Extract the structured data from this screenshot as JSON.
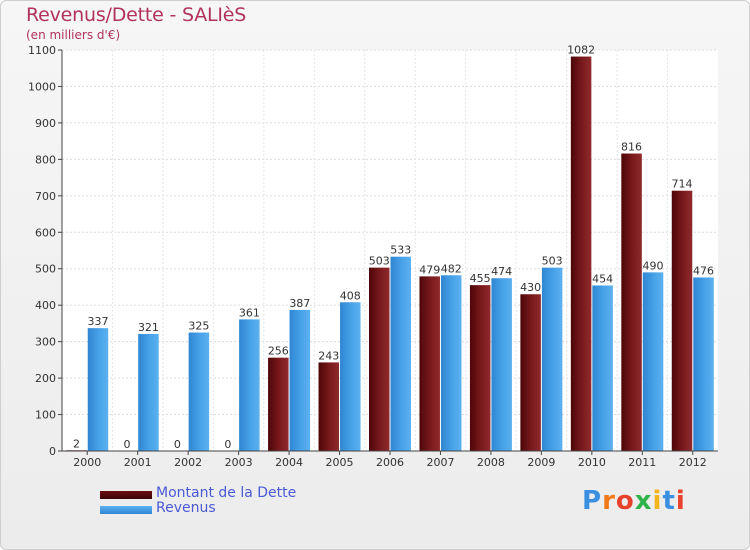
{
  "header": {
    "title": "Revenus/Dette - SALIèS",
    "subtitle": "(en milliers d'€)"
  },
  "legend": {
    "items": [
      {
        "label": "Montant de la Dette",
        "color": "#6b0f12"
      },
      {
        "label": "Revenus",
        "color": "#3e97df"
      }
    ]
  },
  "logo": {
    "text": "Proxiti"
  },
  "chart_data": {
    "type": "bar",
    "categories": [
      "2000",
      "2001",
      "2002",
      "2003",
      "2004",
      "2005",
      "2006",
      "2007",
      "2008",
      "2009",
      "2010",
      "2011",
      "2012"
    ],
    "series": [
      {
        "name": "Montant de la Dette",
        "color": "#6b0f12",
        "values": [
          2,
          0,
          0,
          0,
          256,
          243,
          503,
          479,
          455,
          430,
          1082,
          816,
          714
        ]
      },
      {
        "name": "Revenus",
        "color": "#3e97df",
        "values": [
          337,
          321,
          325,
          361,
          387,
          408,
          533,
          482,
          474,
          503,
          454,
          490,
          476
        ]
      }
    ],
    "ylim": [
      0,
      1100
    ],
    "yticks": [
      0,
      100,
      200,
      300,
      400,
      500,
      600,
      700,
      800,
      900,
      1000,
      1100
    ],
    "grid": true,
    "legend_position": "bottom-left"
  }
}
